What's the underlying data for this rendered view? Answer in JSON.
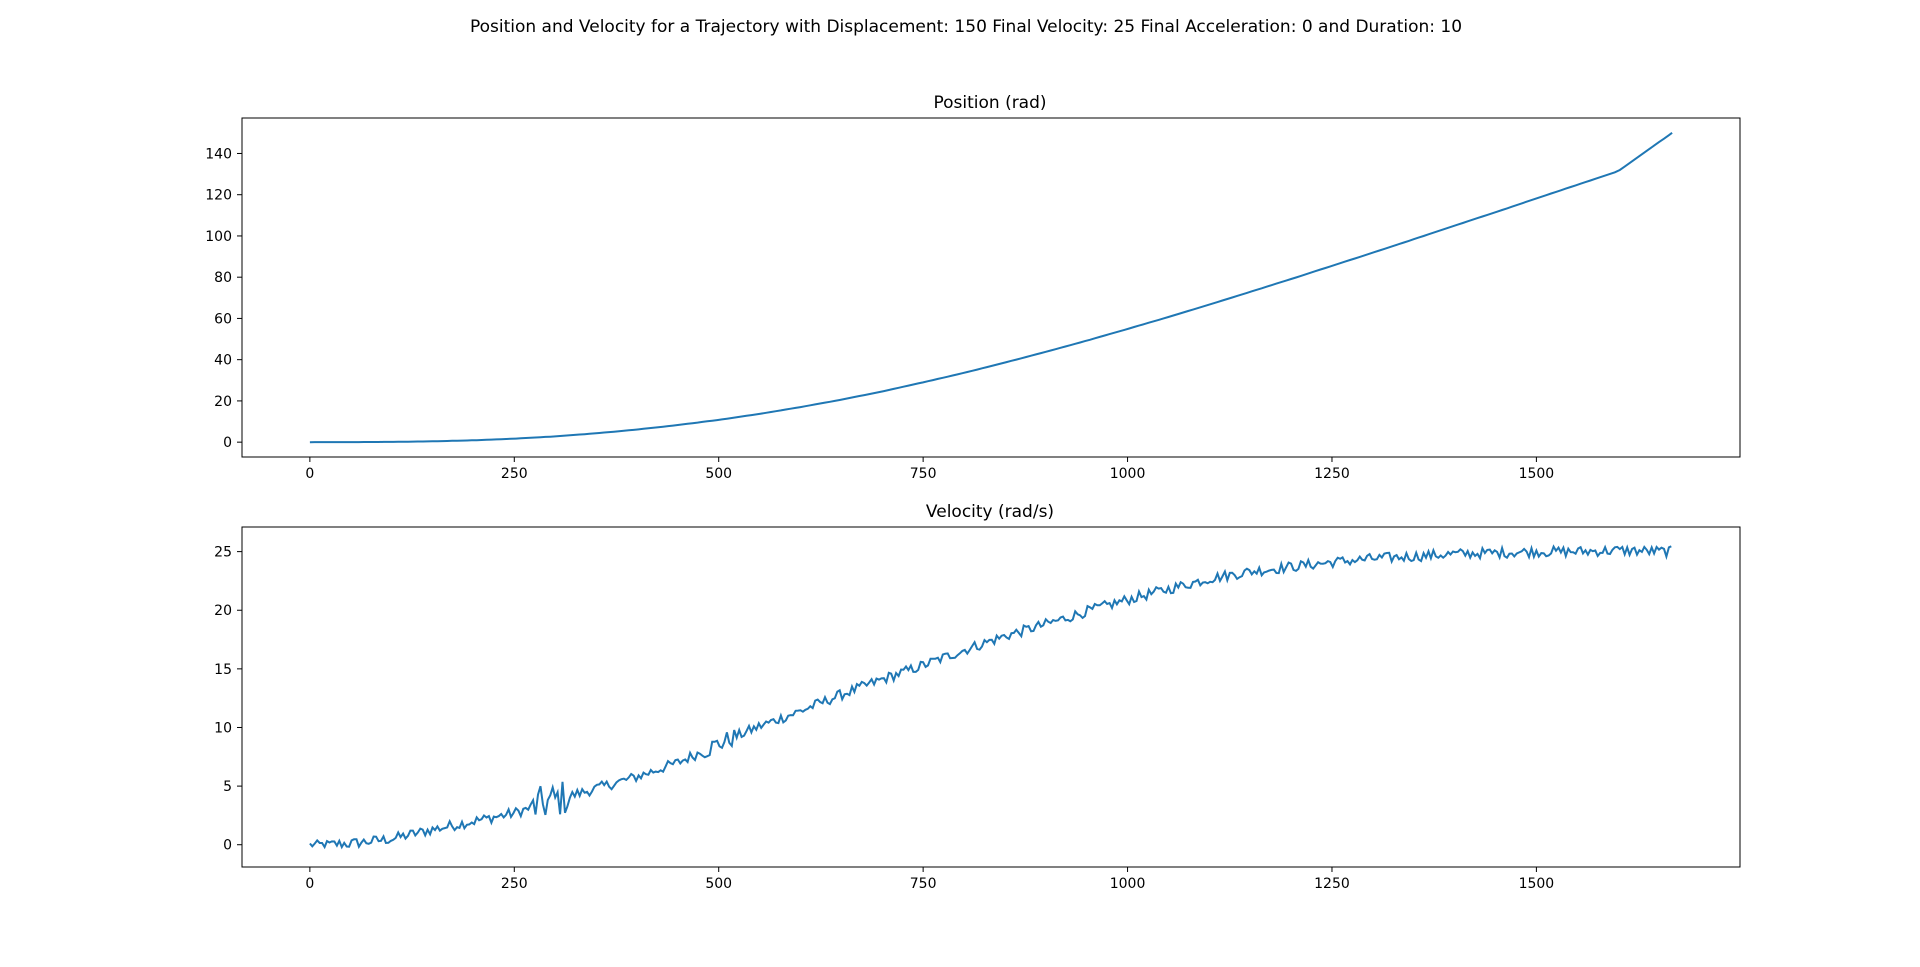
{
  "figure": {
    "suptitle": "Position and Velocity for a Trajectory with Displacement: 150 Final Velocity: 25 Final Acceleration: 0 and Duration: 10"
  },
  "chart_data": [
    {
      "type": "line",
      "title": "Position (rad)",
      "xlabel": "",
      "ylabel": "",
      "xlim": [
        -83,
        1749
      ],
      "ylim": [
        -7.2,
        157.2
      ],
      "x_ticks": [
        0,
        250,
        500,
        750,
        1000,
        1250,
        1500
      ],
      "y_ticks": [
        0,
        20,
        40,
        60,
        80,
        100,
        120,
        140
      ],
      "grid": false,
      "legend": null,
      "color": "#1f77b4",
      "x_range": [
        0,
        1666
      ],
      "duration": 10,
      "displacement": 150,
      "final_velocity": 25,
      "series": [
        {
          "x": [
            0,
            50,
            100,
            150,
            200,
            250,
            300,
            350,
            400,
            450,
            500,
            550,
            600,
            650,
            700,
            750,
            800,
            850,
            900,
            950,
            1000,
            1050,
            1100,
            1150,
            1200,
            1250,
            1300,
            1350,
            1400,
            1450,
            1500,
            1550,
            1600,
            1666
          ],
          "values": [
            0,
            0.02,
            0.12,
            0.4,
            0.9,
            1.7,
            2.8,
            4.3,
            6.1,
            8.3,
            10.8,
            13.7,
            17.0,
            20.6,
            24.6,
            29.0,
            33.6,
            38.6,
            43.8,
            49.2,
            54.9,
            60.7,
            66.7,
            72.9,
            79.1,
            85.5,
            91.9,
            98.4,
            105.0,
            111.5,
            118.2,
            124.8,
            131.4,
            150.0
          ]
        }
      ]
    },
    {
      "type": "line",
      "title": "Velocity (rad/s)",
      "xlabel": "",
      "ylabel": "",
      "xlim": [
        -83,
        1749
      ],
      "ylim": [
        -1.9,
        27.1
      ],
      "x_ticks": [
        0,
        250,
        500,
        750,
        1000,
        1250,
        1500
      ],
      "y_ticks": [
        0,
        5,
        10,
        15,
        20,
        25
      ],
      "grid": false,
      "legend": null,
      "color": "#1f77b4",
      "note_series": "noisy velocity trace",
      "series": [
        {
          "x": [
            0,
            50,
            100,
            150,
            200,
            250,
            300,
            350,
            400,
            450,
            500,
            550,
            600,
            650,
            700,
            750,
            800,
            850,
            900,
            950,
            1000,
            1050,
            1100,
            1150,
            1200,
            1250,
            1300,
            1350,
            1400,
            1450,
            1500,
            1550,
            1600,
            1666
          ],
          "values": [
            0,
            0.1,
            0.5,
            1.3,
            2.0,
            2.7,
            3.8,
            4.8,
            5.8,
            7.0,
            8.6,
            10.1,
            11.4,
            12.8,
            14.1,
            15.3,
            16.6,
            17.8,
            18.8,
            19.9,
            20.9,
            21.8,
            22.7,
            23.3,
            23.7,
            24.1,
            24.4,
            24.6,
            24.8,
            24.9,
            25.0,
            25.0,
            25.1,
            25.0
          ]
        }
      ]
    }
  ]
}
